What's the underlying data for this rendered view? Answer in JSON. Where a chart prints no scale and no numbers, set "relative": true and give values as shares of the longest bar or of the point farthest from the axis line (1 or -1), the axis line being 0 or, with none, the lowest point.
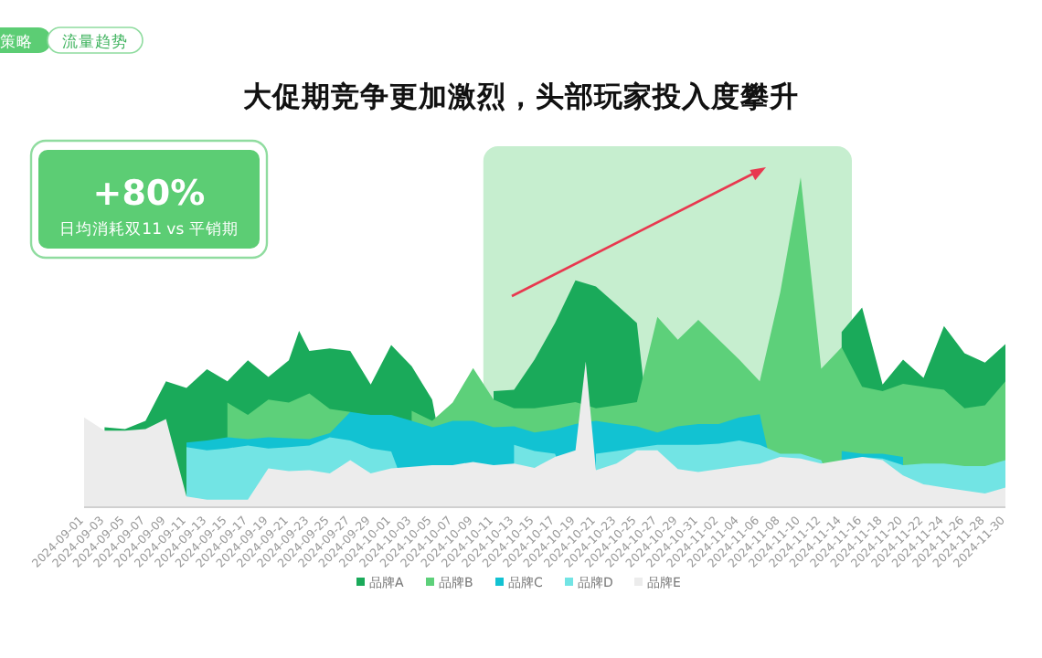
{
  "chart_data": {
    "type": "area",
    "title": "大促期竞争更加激烈，头部玩家投入度攀升",
    "relative": true,
    "legend": "bottom",
    "annotations": [
      "+80%",
      "日均消耗双11 vs 平销期",
      "策略",
      "流量趋势"
    ],
    "xlim": [
      "2024-09-01",
      "2024-11-30"
    ],
    "xticks": [
      "2024-09-01",
      "2024-09-03",
      "2024-09-05",
      "2024-09-07",
      "2024-09-09",
      "2024-09-11",
      "2024-09-13",
      "2024-09-15",
      "2024-09-17",
      "2024-09-19",
      "2024-09-21",
      "2024-09-23",
      "2024-09-25",
      "2024-09-27",
      "2024-09-29",
      "2024-10-01",
      "2024-10-03",
      "2024-10-05",
      "2024-10-07",
      "2024-10-09",
      "2024-10-11",
      "2024-10-13",
      "2024-10-15",
      "2024-10-17",
      "2024-10-19",
      "2024-10-21",
      "2024-10-23",
      "2024-10-25",
      "2024-10-27",
      "2024-10-29",
      "2024-10-31",
      "2024-11-02",
      "2024-11-04",
      "2024-11-06",
      "2024-11-08",
      "2024-11-10",
      "2024-11-12",
      "2024-11-14",
      "2024-11-16",
      "2024-11-18",
      "2024-11-20",
      "2024-11-22",
      "2024-11-24",
      "2024-11-26",
      "2024-11-28",
      "2024-11-30"
    ],
    "bands": [
      {
        "axis": "x",
        "from": "2024-10-10",
        "to": "2024-11-15",
        "color": "#c6eecf"
      }
    ],
    "series": [
      {
        "name": "品牌A",
        "color": "#1aaa5a",
        "x": [
          "2024-09-03",
          "2024-09-05",
          "2024-09-07",
          "2024-09-09",
          "2024-09-11",
          "2024-09-13",
          "2024-09-15",
          "2024-09-17",
          "2024-09-19",
          "2024-09-21",
          "2024-09-22",
          "2024-09-23",
          "2024-09-25",
          "2024-09-27",
          "2024-09-29",
          "2024-10-01",
          "2024-10-03",
          "2024-10-05",
          "2024-10-07",
          "2024-10-11",
          "2024-10-13",
          "2024-10-15",
          "2024-10-17",
          "2024-10-19",
          "2024-10-21",
          "2024-10-23",
          "2024-10-25",
          "2024-10-27",
          "2024-11-14",
          "2024-11-16",
          "2024-11-18",
          "2024-11-20",
          "2024-11-22",
          "2024-11-24",
          "2024-11-26",
          "2024-11-28",
          "2024-11-30"
        ],
        "values": [
          0.24,
          0.235,
          0.26,
          0.38,
          0.36,
          0.417,
          0.38,
          0.444,
          0.393,
          0.444,
          0.533,
          0.472,
          0.48,
          0.472,
          0.37,
          0.49,
          0.426,
          0.324,
          null,
          0.35,
          0.354,
          0.446,
          0.557,
          0.687,
          0.668,
          0.613,
          0.557,
          null,
          0.53,
          0.604,
          0.37,
          0.446,
          0.39,
          0.548,
          0.465,
          0.437,
          0.493
        ]
      },
      {
        "name": "品牌B",
        "color": "#5dd07a",
        "x": [
          "2024-09-15",
          "2024-09-17",
          "2024-09-19",
          "2024-09-21",
          "2024-09-23",
          "2024-09-25",
          "2024-09-27",
          "2024-09-29",
          "2024-10-03",
          "2024-10-05",
          "2024-10-07",
          "2024-10-09",
          "2024-10-11",
          "2024-10-13",
          "2024-10-15",
          "2024-10-17",
          "2024-10-19",
          "2024-10-21",
          "2024-10-23",
          "2024-10-25",
          "2024-10-27",
          "2024-10-29",
          "2024-10-31",
          "2024-11-02",
          "2024-11-04",
          "2024-11-06",
          "2024-11-08",
          "2024-11-10",
          "2024-11-12",
          "2024-11-14",
          "2024-11-16",
          "2024-11-18",
          "2024-11-20",
          "2024-11-22",
          "2024-11-24",
          "2024-11-26",
          "2024-11-28",
          "2024-11-30"
        ],
        "values": [
          0.315,
          0.278,
          0.324,
          0.315,
          0.343,
          0.296,
          0.287,
          null,
          0.29,
          0.26,
          0.315,
          0.42,
          0.324,
          0.298,
          0.298,
          0.307,
          0.317,
          0.298,
          0.307,
          0.317,
          0.576,
          0.506,
          0.567,
          0.506,
          0.446,
          0.38,
          0.65,
          1.0,
          0.418,
          0.483,
          0.363,
          0.35,
          0.372,
          0.363,
          0.354,
          0.298,
          0.307,
          0.38
        ]
      },
      {
        "name": "品牌C",
        "color": "#12c2d2",
        "x": [
          "2024-09-11",
          "2024-09-13",
          "2024-09-15",
          "2024-09-17",
          "2024-09-19",
          "2024-09-21",
          "2024-09-23",
          "2024-09-25",
          "2024-09-27",
          "2024-09-29",
          "2024-10-01",
          "2024-10-03",
          "2024-10-05",
          "2024-10-07",
          "2024-10-09",
          "2024-10-11",
          "2024-10-13",
          "2024-10-15",
          "2024-10-17",
          "2024-10-19",
          "2024-10-21",
          "2024-10-23",
          "2024-10-25",
          "2024-10-27",
          "2024-10-29",
          "2024-10-31",
          "2024-11-02",
          "2024-11-04",
          "2024-11-06",
          "2024-11-08",
          "2024-11-14",
          "2024-11-16",
          "2024-11-18",
          "2024-11-20"
        ],
        "values": [
          0.194,
          0.2,
          0.21,
          0.204,
          0.21,
          0.207,
          0.204,
          0.222,
          0.287,
          0.278,
          0.278,
          0.26,
          0.24,
          0.26,
          0.26,
          0.24,
          0.243,
          0.224,
          0.233,
          0.25,
          0.26,
          0.25,
          0.243,
          0.224,
          0.243,
          0.25,
          0.25,
          0.27,
          0.28,
          null,
          0.168,
          0.16,
          0.16,
          0.15
        ]
      },
      {
        "name": "品牌D",
        "color": "#72e4e4",
        "x": [
          "2024-09-11",
          "2024-09-13",
          "2024-09-15",
          "2024-09-17",
          "2024-09-19",
          "2024-09-21",
          "2024-09-23",
          "2024-09-25",
          "2024-09-27",
          "2024-09-29",
          "2024-10-01",
          "2024-10-03",
          "2024-10-13",
          "2024-10-15",
          "2024-10-17",
          "2024-10-19",
          "2024-10-21",
          "2024-10-23",
          "2024-10-25",
          "2024-10-27",
          "2024-10-29",
          "2024-10-31",
          "2024-11-02",
          "2024-11-04",
          "2024-11-06",
          "2024-11-08",
          "2024-11-10",
          "2024-11-12",
          "2024-11-14",
          "2024-11-16",
          "2024-11-18",
          "2024-11-20",
          "2024-11-22",
          "2024-11-24",
          "2024-11-26",
          "2024-11-28",
          "2024-11-30"
        ],
        "values": [
          0.18,
          0.17,
          0.176,
          0.185,
          0.176,
          0.18,
          0.185,
          0.21,
          0.2,
          0.176,
          0.167,
          null,
          0.187,
          0.168,
          0.16,
          null,
          0.16,
          0.168,
          0.178,
          0.187,
          0.187,
          0.187,
          0.19,
          0.2,
          0.187,
          0.16,
          0.16,
          0.14,
          null,
          0.15,
          0.145,
          0.125,
          0.13,
          0.13,
          0.122,
          0.122,
          0.14
        ]
      },
      {
        "name": "品牌E",
        "color": "#ececec",
        "x": [
          "2024-09-01",
          "2024-09-03",
          "2024-09-05",
          "2024-09-07",
          "2024-09-09",
          "2024-09-11",
          "2024-09-13",
          "2024-09-15",
          "2024-09-17",
          "2024-09-19",
          "2024-09-21",
          "2024-09-23",
          "2024-09-25",
          "2024-09-27",
          "2024-09-29",
          "2024-10-01",
          "2024-10-03",
          "2024-10-05",
          "2024-10-07",
          "2024-10-09",
          "2024-10-11",
          "2024-10-13",
          "2024-10-15",
          "2024-10-17",
          "2024-10-19",
          "2024-10-20",
          "2024-10-21",
          "2024-10-23",
          "2024-10-25",
          "2024-10-27",
          "2024-10-29",
          "2024-10-31",
          "2024-11-02",
          "2024-11-04",
          "2024-11-06",
          "2024-11-08",
          "2024-11-10",
          "2024-11-12",
          "2024-11-14",
          "2024-11-16",
          "2024-11-18",
          "2024-11-20",
          "2024-11-22",
          "2024-11-24",
          "2024-11-26",
          "2024-11-28",
          "2024-11-30"
        ],
        "values": [
          0.27,
          0.23,
          0.23,
          0.235,
          0.265,
          0.03,
          0.02,
          0.02,
          0.02,
          0.115,
          0.107,
          0.11,
          0.1,
          0.14,
          0.1,
          0.115,
          0.12,
          0.125,
          0.125,
          0.135,
          0.125,
          0.13,
          0.117,
          0.15,
          0.17,
          0.44,
          0.11,
          0.13,
          0.17,
          0.17,
          0.113,
          0.104,
          0.113,
          0.122,
          0.13,
          0.15,
          0.145,
          0.13,
          0.14,
          0.15,
          0.14,
          0.094,
          0.067,
          0.057,
          0.048,
          0.039,
          0.057
        ]
      }
    ]
  }
}
